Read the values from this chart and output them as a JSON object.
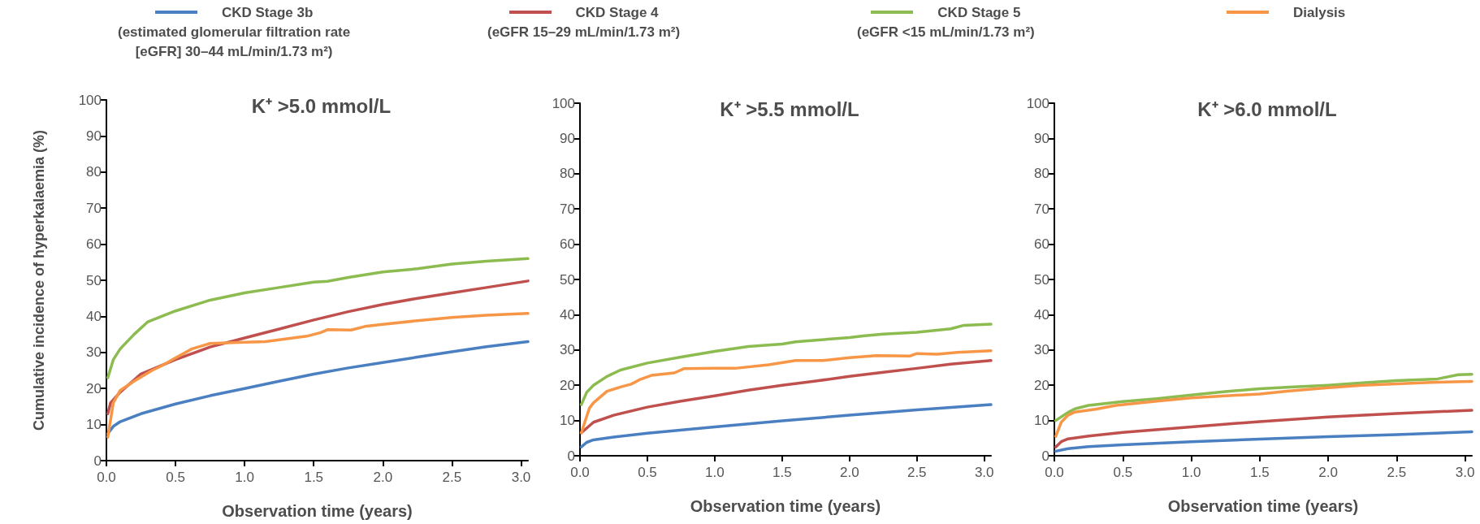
{
  "chart_data": [
    {
      "type": "line",
      "title": "K⁺ >5.0 mmol/L",
      "xlabel": "Observation time (years)",
      "ylabel": "Cumulative incidence of hyperkalaemia (%)",
      "legend": "top",
      "grid": false,
      "marker": "none",
      "line_style": "solid",
      "xlim": [
        0,
        3.05
      ],
      "xticks": [
        {
          "value": 0,
          "label": "0.0"
        },
        {
          "value": 0.5,
          "label": "0.5"
        },
        {
          "value": 1,
          "label": "1.0"
        },
        {
          "value": 1.5,
          "label": "1.5"
        },
        {
          "value": 2,
          "label": "2.0"
        },
        {
          "value": 2.5,
          "label": "2.5"
        },
        {
          "value": 3,
          "label": "3.0"
        }
      ],
      "ylim": [
        0,
        100
      ],
      "yticks": [
        0,
        10,
        20,
        30,
        40,
        50,
        60,
        70,
        80,
        90,
        100
      ],
      "series": [
        {
          "name": "CKD Stage 3b\n(estimated glomerular filtration rate\n[eGFR] 30–44 mL/min/1.73 m²)",
          "color": "#4a7fc1",
          "x": [
            0.01,
            0.05,
            0.1,
            0.25,
            0.5,
            0.75,
            1,
            1.25,
            1.5,
            1.75,
            2,
            2.25,
            2.5,
            2.75,
            3.05
          ],
          "values": [
            7.5,
            9.5,
            10.8,
            13,
            15.7,
            18,
            20,
            22,
            24,
            25.7,
            27.2,
            28.7,
            30.2,
            31.6,
            33
          ]
        },
        {
          "name": "CKD Stage 4\n(eGFR 15–29 mL/min/1.73 m²)",
          "color": "#c0504d",
          "x": [
            0.01,
            0.03,
            0.1,
            0.25,
            0.5,
            0.75,
            1,
            1.25,
            1.5,
            1.75,
            2,
            2.25,
            2.5,
            2.75,
            3.05
          ],
          "values": [
            13,
            16,
            19,
            24,
            28,
            31.5,
            34,
            36.5,
            39,
            41.3,
            43.3,
            45,
            46.5,
            48,
            49.8
          ]
        },
        {
          "name": "CKD Stage 5\n(eGFR <15 mL/min/1.73 m²)",
          "color": "#8cbb4f",
          "x": [
            0.01,
            0.05,
            0.1,
            0.2,
            0.3,
            0.4,
            0.5,
            0.75,
            1,
            1.25,
            1.5,
            1.6,
            1.75,
            2,
            2.25,
            2.5,
            2.75,
            3.05
          ],
          "values": [
            23,
            28,
            31,
            35,
            38.5,
            40,
            41.5,
            44.5,
            46.5,
            48,
            49.5,
            49.7,
            50.8,
            52.3,
            53.2,
            54.5,
            55.3,
            56
          ]
        },
        {
          "name": "Dialysis",
          "color": "#f79646",
          "x": [
            0.01,
            0.05,
            0.1,
            0.2,
            0.33,
            0.4,
            0.5,
            0.62,
            0.75,
            1,
            1.15,
            1.45,
            1.55,
            1.6,
            1.77,
            1.87,
            2,
            2.25,
            2.5,
            2.75,
            3.05
          ],
          "values": [
            6.5,
            16,
            19.5,
            22,
            25,
            26.3,
            28.5,
            31,
            32.5,
            32.8,
            33,
            34.5,
            35.5,
            36.3,
            36.2,
            37.2,
            37.8,
            38.8,
            39.7,
            40.3,
            40.8
          ]
        }
      ]
    },
    {
      "type": "line",
      "title": "K⁺ >5.5 mmol/L",
      "xlabel": "Observation time (years)",
      "grid": false,
      "marker": "none",
      "line_style": "solid",
      "xlim": [
        0,
        3.05
      ],
      "xticks": [
        {
          "value": 0,
          "label": "0.0"
        },
        {
          "value": 0.5,
          "label": "0.5"
        },
        {
          "value": 1,
          "label": "1.0"
        },
        {
          "value": 1.5,
          "label": "1.5"
        },
        {
          "value": 2,
          "label": "2.0"
        },
        {
          "value": 2.5,
          "label": "2.5"
        },
        {
          "value": 3,
          "label": "3.0"
        }
      ],
      "ylim": [
        0,
        100
      ],
      "yticks": [
        0,
        10,
        20,
        30,
        40,
        50,
        60,
        70,
        80,
        90,
        100
      ],
      "series": [
        {
          "color": "#4a7fc1",
          "x": [
            0.01,
            0.05,
            0.1,
            0.25,
            0.5,
            1,
            1.5,
            2,
            2.5,
            3.05
          ],
          "values": [
            2.5,
            3.8,
            4.5,
            5.3,
            6.4,
            8.2,
            9.9,
            11.5,
            13,
            14.5
          ]
        },
        {
          "color": "#c0504d",
          "x": [
            0.01,
            0.1,
            0.25,
            0.5,
            0.75,
            1,
            1.25,
            1.5,
            1.75,
            2,
            2.25,
            2.5,
            2.75,
            3.05
          ],
          "values": [
            6.5,
            9.5,
            11.5,
            13.8,
            15.5,
            17,
            18.6,
            20,
            21.2,
            22.5,
            23.7,
            24.8,
            26,
            27
          ]
        },
        {
          "color": "#8cbb4f",
          "x": [
            0.01,
            0.05,
            0.1,
            0.2,
            0.3,
            0.5,
            0.75,
            1,
            1.25,
            1.5,
            1.6,
            1.75,
            2,
            2.1,
            2.25,
            2.5,
            2.75,
            2.85,
            3.05
          ],
          "values": [
            14.5,
            18,
            20,
            22.5,
            24.3,
            26.3,
            28,
            29.6,
            31,
            31.7,
            32.3,
            32.8,
            33.5,
            34,
            34.5,
            35,
            36,
            37,
            37.3
          ]
        },
        {
          "color": "#f79646",
          "x": [
            0.01,
            0.07,
            0.1,
            0.2,
            0.3,
            0.38,
            0.45,
            0.53,
            0.7,
            0.77,
            1,
            1.15,
            1.4,
            1.6,
            1.8,
            2,
            2.2,
            2.45,
            2.5,
            2.65,
            2.8,
            3.05
          ],
          "values": [
            6.5,
            13.5,
            15,
            18.3,
            19.5,
            20.3,
            21.7,
            22.8,
            23.5,
            24.7,
            24.8,
            24.8,
            25.8,
            27,
            27,
            27.8,
            28.4,
            28.3,
            29,
            28.8,
            29.3,
            29.8
          ]
        }
      ]
    },
    {
      "type": "line",
      "title": "K⁺ >6.0 mmol/L",
      "xlabel": "Observation time (years)",
      "grid": false,
      "marker": "none",
      "line_style": "solid",
      "xlim": [
        0,
        3.05
      ],
      "xticks": [
        {
          "value": 0,
          "label": "0.0"
        },
        {
          "value": 0.5,
          "label": "0.5"
        },
        {
          "value": 1,
          "label": "1.0"
        },
        {
          "value": 1.5,
          "label": "1.5"
        },
        {
          "value": 2,
          "label": "2.0"
        },
        {
          "value": 2.5,
          "label": "2.5"
        },
        {
          "value": 3,
          "label": "3.0"
        }
      ],
      "ylim": [
        0,
        100
      ],
      "yticks": [
        0,
        10,
        20,
        30,
        40,
        50,
        60,
        70,
        80,
        90,
        100
      ],
      "series": [
        {
          "color": "#4a7fc1",
          "x": [
            0.01,
            0.1,
            0.25,
            0.5,
            1,
            1.5,
            2,
            2.5,
            3.05
          ],
          "values": [
            1.3,
            2,
            2.6,
            3.1,
            4,
            4.7,
            5.4,
            6,
            6.8
          ]
        },
        {
          "color": "#c0504d",
          "x": [
            0.01,
            0.05,
            0.1,
            0.25,
            0.5,
            1,
            1.5,
            2,
            2.5,
            3.05
          ],
          "values": [
            2.5,
            4,
            4.8,
            5.6,
            6.6,
            8.2,
            9.7,
            11,
            12,
            12.9
          ]
        },
        {
          "color": "#8cbb4f",
          "x": [
            0.01,
            0.1,
            0.15,
            0.25,
            0.5,
            0.75,
            1,
            1.25,
            1.5,
            1.75,
            2,
            2.25,
            2.5,
            2.8,
            2.95,
            3.05
          ],
          "values": [
            10,
            12.3,
            13.3,
            14.3,
            15.4,
            16.2,
            17.2,
            18.2,
            19,
            19.5,
            20,
            20.7,
            21.3,
            21.8,
            23,
            23.1
          ]
        },
        {
          "color": "#f79646",
          "x": [
            0.01,
            0.05,
            0.1,
            0.15,
            0.3,
            0.45,
            0.75,
            1,
            1.25,
            1.5,
            1.7,
            2,
            2.25,
            2.5,
            2.75,
            3.05
          ],
          "values": [
            5.5,
            9.5,
            11.5,
            12.4,
            13.2,
            14.3,
            15.5,
            16.4,
            17,
            17.5,
            18.3,
            19.3,
            20,
            20.4,
            20.8,
            21.1
          ]
        }
      ]
    }
  ]
}
